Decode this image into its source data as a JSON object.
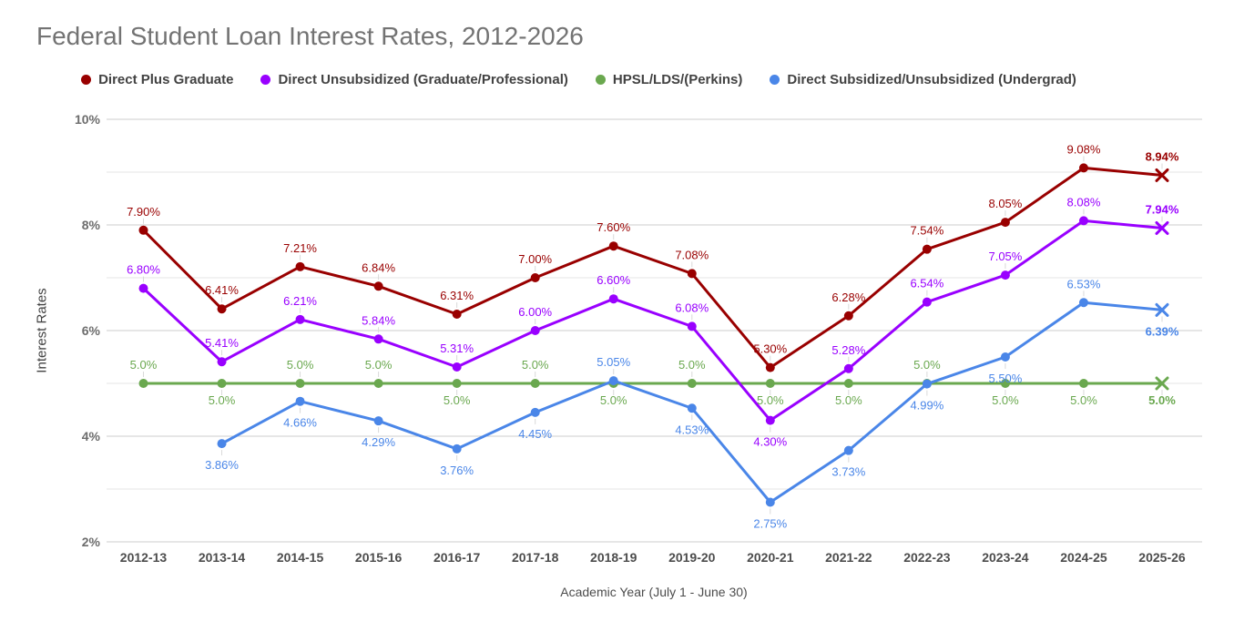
{
  "chart_data": {
    "type": "line",
    "title": "Federal Student Loan Interest Rates, 2012-2026",
    "xlabel": "Academic Year (July 1 - June 30)",
    "ylabel": "Interest Rates",
    "ylim": [
      2,
      10
    ],
    "ytick_values": [
      2,
      4,
      6,
      8,
      10
    ],
    "ytick_labels": [
      "2%",
      "4%",
      "6%",
      "8%",
      "10%"
    ],
    "minor_grid_values": [
      3,
      5,
      7,
      9
    ],
    "grid": true,
    "legend_position": "top",
    "last_point_marker": "x",
    "last_label_bold": true,
    "categories": [
      "2012-13",
      "2013-14",
      "2014-15",
      "2015-16",
      "2016-17",
      "2017-18",
      "2018-19",
      "2019-20",
      "2020-21",
      "2021-22",
      "2022-23",
      "2023-24",
      "2024-25",
      "2025-26"
    ],
    "series": [
      {
        "name": "Direct Plus Graduate",
        "color": "#990000",
        "values": [
          7.9,
          6.41,
          7.21,
          6.84,
          6.31,
          7.0,
          7.6,
          7.08,
          5.3,
          6.28,
          7.54,
          8.05,
          9.08,
          8.94
        ],
        "labels": [
          "7.90%",
          "6.41%",
          "7.21%",
          "6.84%",
          "6.31%",
          "7.00%",
          "7.60%",
          "7.08%",
          "5.30%",
          "6.28%",
          "7.54%",
          "8.05%",
          "9.08%",
          "8.94%"
        ],
        "label_side": [
          "above",
          "above",
          "above",
          "above",
          "above",
          "above",
          "above",
          "above",
          "above",
          "above",
          "above",
          "above",
          "above",
          "above"
        ]
      },
      {
        "name": "Direct Unsubsidized (Graduate/Professional)",
        "color": "#9900FF",
        "values": [
          6.8,
          5.41,
          6.21,
          5.84,
          5.31,
          6.0,
          6.6,
          6.08,
          4.3,
          5.28,
          6.54,
          7.05,
          8.08,
          7.94
        ],
        "labels": [
          "6.80%",
          "5.41%",
          "6.21%",
          "5.84%",
          "5.31%",
          "6.00%",
          "6.60%",
          "6.08%",
          "4.30%",
          "5.28%",
          "6.54%",
          "7.05%",
          "8.08%",
          "7.94%"
        ],
        "label_side": [
          "above",
          "above",
          "above",
          "above",
          "above",
          "above",
          "above",
          "above",
          "below",
          "above",
          "above",
          "above",
          "above",
          "above"
        ]
      },
      {
        "name": "HPSL/LDS/(Perkins)",
        "color": "#6AA84F",
        "values": [
          5.0,
          5.0,
          5.0,
          5.0,
          5.0,
          5.0,
          5.0,
          5.0,
          5.0,
          5.0,
          5.0,
          5.0,
          5.0,
          5.0
        ],
        "labels": [
          "5.0%",
          "5.0%",
          "5.0%",
          "5.0%",
          "5.0%",
          "5.0%",
          "5.0%",
          "5.0%",
          "5.0%",
          "5.0%",
          "5.0%",
          "5.0%",
          "5.0%",
          "5.0%"
        ],
        "label_side": [
          "above",
          "below",
          "above",
          "above",
          "below",
          "above",
          "below",
          "above",
          "below",
          "below",
          "above",
          "below",
          "below",
          "below"
        ]
      },
      {
        "name": "Direct Subsidized/Unsubsidized (Undergrad)",
        "color": "#4A86E8",
        "values": [
          null,
          3.86,
          4.66,
          4.29,
          3.76,
          4.45,
          5.05,
          4.53,
          2.75,
          3.73,
          4.99,
          5.5,
          6.53,
          6.39
        ],
        "labels": [
          null,
          "3.86%",
          "4.66%",
          "4.29%",
          "3.76%",
          "4.45%",
          "5.05%",
          "4.53%",
          "2.75%",
          "3.73%",
          "4.99%",
          "5.50%",
          "6.53%",
          "6.39%"
        ],
        "label_side": [
          null,
          "below",
          "below",
          "below",
          "below",
          "below",
          "above",
          "below",
          "below",
          "below",
          "below",
          "below",
          "above",
          "below"
        ]
      }
    ]
  }
}
